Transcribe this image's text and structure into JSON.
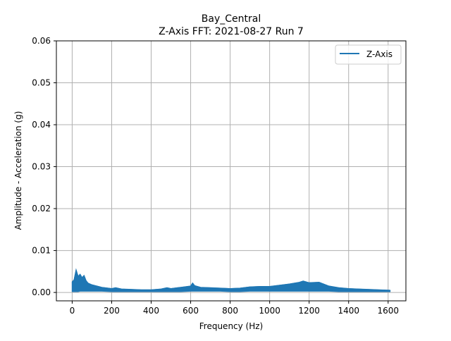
{
  "chart_data": {
    "type": "line",
    "title": "Bay_Central",
    "subtitle": "Z-Axis FFT: 2021-08-27 Run 7",
    "xlabel": "Frequency (Hz)",
    "ylabel": "Amplitude - Acceleration (g)",
    "xlim": [
      -80,
      1690
    ],
    "ylim": [
      -0.002,
      0.06
    ],
    "x_ticks": [
      0,
      200,
      400,
      600,
      800,
      1000,
      1200,
      1400,
      1600
    ],
    "x_tick_labels": [
      "0",
      "200",
      "400",
      "600",
      "800",
      "1000",
      "1200",
      "1400",
      "1600"
    ],
    "y_ticks": [
      0.0,
      0.01,
      0.02,
      0.03,
      0.04,
      0.05,
      0.06
    ],
    "y_tick_labels": [
      "0.00",
      "0.01",
      "0.02",
      "0.03",
      "0.04",
      "0.05",
      "0.06"
    ],
    "grid": true,
    "legend_position": "top-right",
    "colors": {
      "series": "#1f77b4",
      "grid": "#b0b0b0",
      "axes": "#000000"
    },
    "series": [
      {
        "name": "Z-Axis",
        "color": "#1f77b4",
        "x": [
          0,
          10,
          20,
          30,
          40,
          50,
          60,
          70,
          80,
          100,
          150,
          200,
          220,
          250,
          300,
          350,
          400,
          450,
          480,
          500,
          550,
          600,
          610,
          620,
          650,
          700,
          750,
          800,
          850,
          900,
          950,
          1000,
          1050,
          1100,
          1150,
          1170,
          1200,
          1250,
          1300,
          1350,
          1400,
          1450,
          1500,
          1550,
          1610
        ],
        "y": [
          0.0025,
          0.003,
          0.0053,
          0.0038,
          0.0043,
          0.0035,
          0.004,
          0.0028,
          0.0022,
          0.0018,
          0.0012,
          0.0009,
          0.0011,
          0.0008,
          0.0007,
          0.0006,
          0.0006,
          0.0008,
          0.0011,
          0.0009,
          0.0012,
          0.0015,
          0.0022,
          0.0016,
          0.0012,
          0.0011,
          0.001,
          0.0009,
          0.001,
          0.0013,
          0.0014,
          0.0014,
          0.0017,
          0.002,
          0.0024,
          0.0027,
          0.0023,
          0.0024,
          0.0015,
          0.0011,
          0.0009,
          0.0008,
          0.0007,
          0.0006,
          0.0005
        ],
        "y_min": [
          0.0002,
          0.0002,
          0.0002,
          0.0002,
          0.0003,
          0.0003,
          0.0003,
          0.0003,
          0.0003,
          0.0003,
          0.0003,
          0.0002,
          0.0002,
          0.0002,
          0.0002,
          0.0002,
          0.0002,
          0.0002,
          0.0002,
          0.0002,
          0.0002,
          0.0003,
          0.0003,
          0.0003,
          0.0003,
          0.0003,
          0.0003,
          0.0002,
          0.0002,
          0.0003,
          0.0003,
          0.0003,
          0.0003,
          0.0003,
          0.0003,
          0.0003,
          0.0003,
          0.0003,
          0.0003,
          0.0002,
          0.0002,
          0.0002,
          0.0002,
          0.0002,
          0.0002
        ]
      }
    ]
  }
}
